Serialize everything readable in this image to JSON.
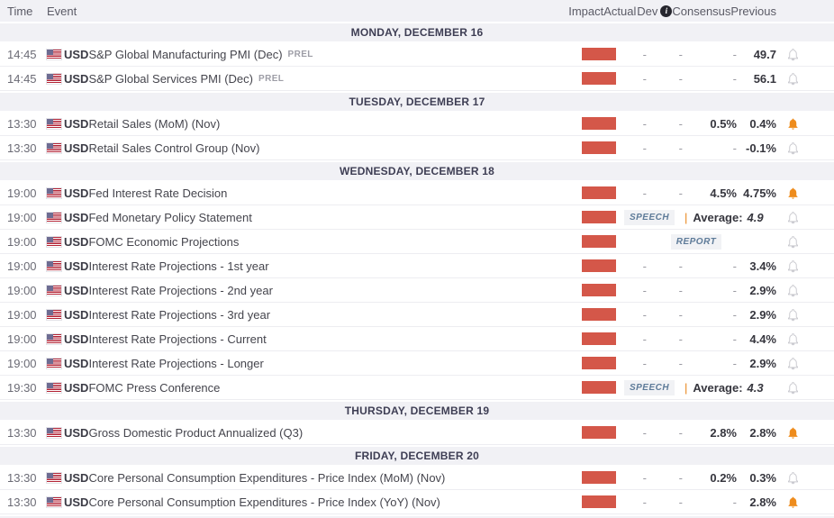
{
  "header": {
    "time": "Time",
    "event": "Event",
    "impact": "Impact",
    "actual": "Actual",
    "dev": "Dev",
    "info_icon": "i",
    "consensus": "Consensus",
    "previous": "Previous"
  },
  "labels": {
    "pipe": "|"
  },
  "colors": {
    "impact_high": "#d45749",
    "bell_active": "#ee8c1d",
    "speech_text": "#5e7b99",
    "pipe_orange": "#e8861c",
    "separator_bg": "#f1f1f5"
  },
  "days": [
    {
      "label": "MONDAY, DECEMBER 16",
      "events": [
        {
          "time": "14:45",
          "currency": "USD",
          "name": "S&P Global Manufacturing PMI (Dec)",
          "tag": "PREL",
          "layout": "values",
          "impact": "high",
          "actual": "-",
          "dev": "-",
          "consensus": "-",
          "previous": "49.7",
          "bell": "inactive"
        },
        {
          "time": "14:45",
          "currency": "USD",
          "name": "S&P Global Services PMI (Dec)",
          "tag": "PREL",
          "layout": "values",
          "impact": "high",
          "actual": "-",
          "dev": "-",
          "consensus": "-",
          "previous": "56.1",
          "bell": "inactive"
        }
      ]
    },
    {
      "label": "TUESDAY, DECEMBER 17",
      "events": [
        {
          "time": "13:30",
          "currency": "USD",
          "name": "Retail Sales (MoM) (Nov)",
          "layout": "values",
          "impact": "high",
          "actual": "-",
          "dev": "-",
          "consensus": "0.5%",
          "previous": "0.4%",
          "bell": "active"
        },
        {
          "time": "13:30",
          "currency": "USD",
          "name": "Retail Sales Control Group (Nov)",
          "layout": "values",
          "impact": "high",
          "actual": "-",
          "dev": "-",
          "consensus": "-",
          "previous": "-0.1%",
          "bell": "inactive"
        }
      ]
    },
    {
      "label": "WEDNESDAY, DECEMBER 18",
      "events": [
        {
          "time": "19:00",
          "currency": "USD",
          "name": "Fed Interest Rate Decision",
          "layout": "values",
          "impact": "high",
          "actual": "-",
          "dev": "-",
          "consensus": "4.5%",
          "previous": "4.75%",
          "bell": "active"
        },
        {
          "time": "19:00",
          "currency": "USD",
          "name": "Fed Monetary Policy Statement",
          "layout": "speech",
          "impact": "high",
          "badge": "SPEECH",
          "average_label": "Average:",
          "average": "4.9",
          "bell": "inactive"
        },
        {
          "time": "19:00",
          "currency": "USD",
          "name": "FOMC Economic Projections",
          "layout": "report",
          "impact": "high",
          "badge": "REPORT",
          "bell": "inactive"
        },
        {
          "time": "19:00",
          "currency": "USD",
          "name": "Interest Rate Projections - 1st year",
          "layout": "values",
          "impact": "high",
          "actual": "-",
          "dev": "-",
          "consensus": "-",
          "previous": "3.4%",
          "bell": "inactive"
        },
        {
          "time": "19:00",
          "currency": "USD",
          "name": "Interest Rate Projections - 2nd year",
          "layout": "values",
          "impact": "high",
          "actual": "-",
          "dev": "-",
          "consensus": "-",
          "previous": "2.9%",
          "bell": "inactive"
        },
        {
          "time": "19:00",
          "currency": "USD",
          "name": "Interest Rate Projections - 3rd year",
          "layout": "values",
          "impact": "high",
          "actual": "-",
          "dev": "-",
          "consensus": "-",
          "previous": "2.9%",
          "bell": "inactive"
        },
        {
          "time": "19:00",
          "currency": "USD",
          "name": "Interest Rate Projections - Current",
          "layout": "values",
          "impact": "high",
          "actual": "-",
          "dev": "-",
          "consensus": "-",
          "previous": "4.4%",
          "bell": "inactive"
        },
        {
          "time": "19:00",
          "currency": "USD",
          "name": "Interest Rate Projections - Longer",
          "layout": "values",
          "impact": "high",
          "actual": "-",
          "dev": "-",
          "consensus": "-",
          "previous": "2.9%",
          "bell": "inactive"
        },
        {
          "time": "19:30",
          "currency": "USD",
          "name": "FOMC Press Conference",
          "layout": "speech",
          "impact": "high",
          "badge": "SPEECH",
          "average_label": "Average:",
          "average": "4.3",
          "bell": "inactive"
        }
      ]
    },
    {
      "label": "THURSDAY, DECEMBER 19",
      "events": [
        {
          "time": "13:30",
          "currency": "USD",
          "name": "Gross Domestic Product Annualized (Q3)",
          "layout": "values",
          "impact": "high",
          "actual": "-",
          "dev": "-",
          "consensus": "2.8%",
          "previous": "2.8%",
          "bell": "active"
        }
      ]
    },
    {
      "label": "FRIDAY, DECEMBER 20",
      "events": [
        {
          "time": "13:30",
          "currency": "USD",
          "name": "Core Personal Consumption Expenditures - Price Index (MoM) (Nov)",
          "layout": "values",
          "impact": "high",
          "actual": "-",
          "dev": "-",
          "consensus": "0.2%",
          "previous": "0.3%",
          "bell": "inactive"
        },
        {
          "time": "13:30",
          "currency": "USD",
          "name": "Core Personal Consumption Expenditures - Price Index (YoY) (Nov)",
          "layout": "values",
          "impact": "high",
          "actual": "-",
          "dev": "-",
          "consensus": "-",
          "previous": "2.8%",
          "bell": "active"
        }
      ]
    }
  ]
}
